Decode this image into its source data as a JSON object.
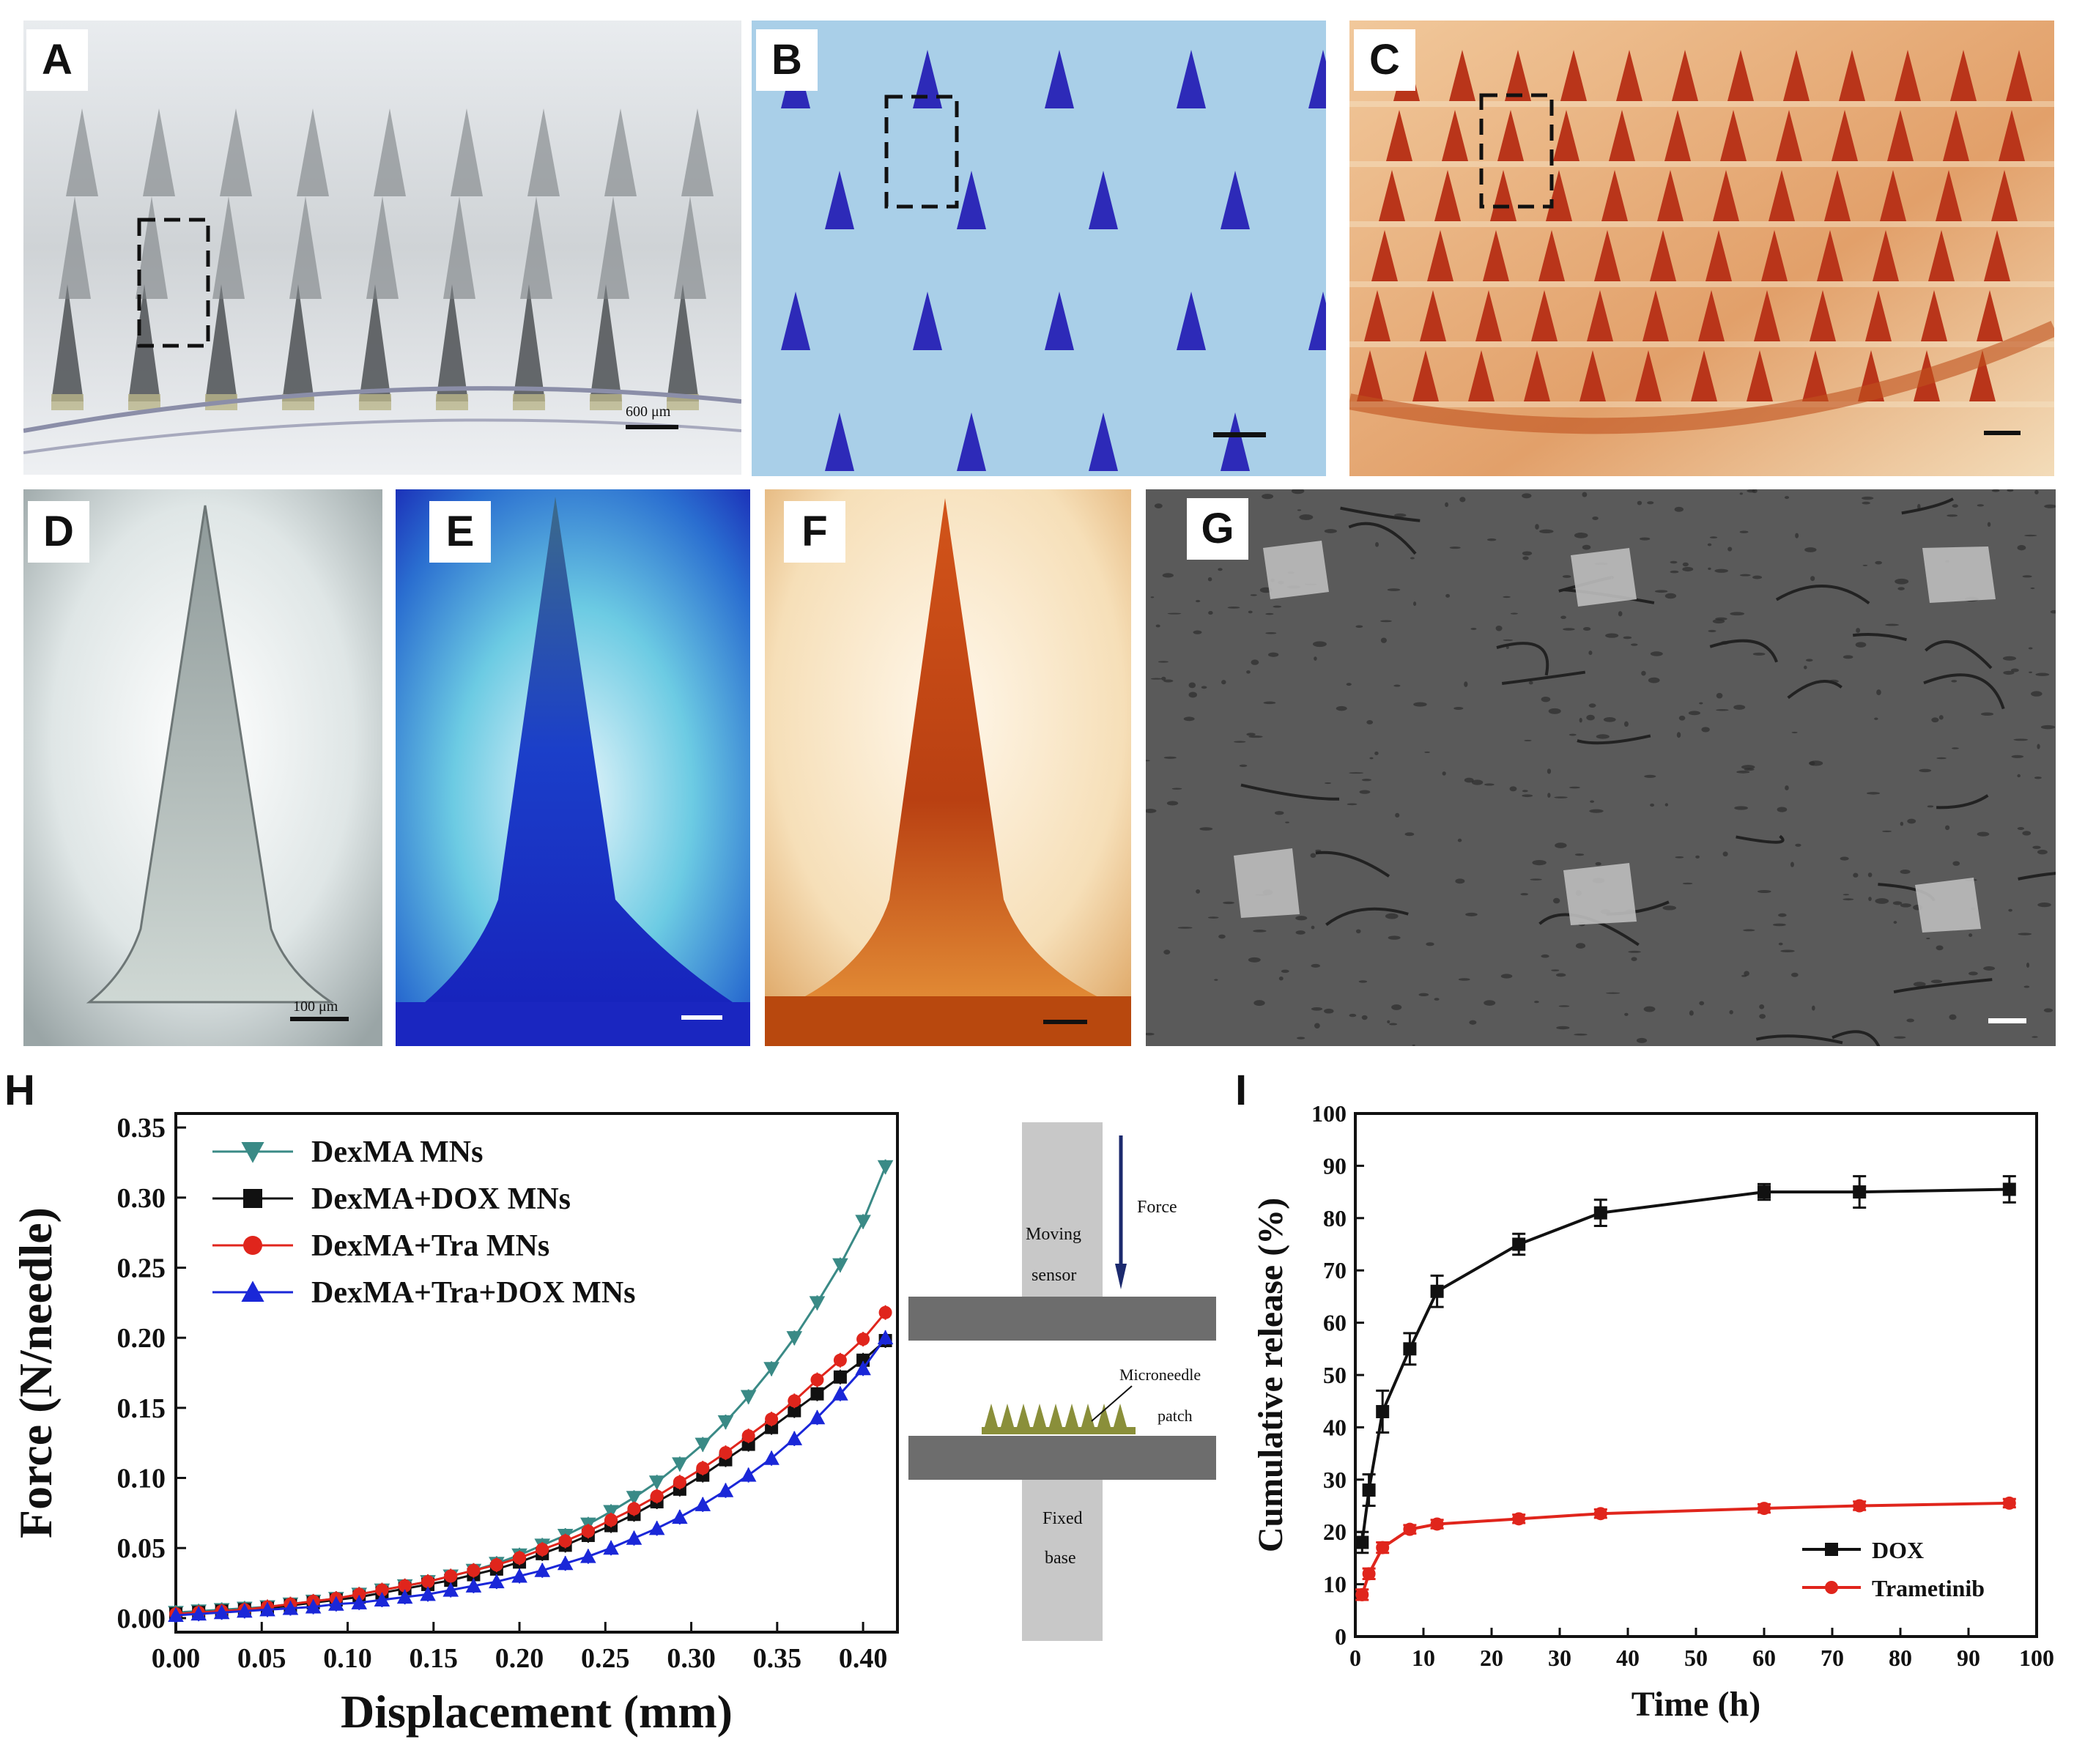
{
  "panels": {
    "A": {
      "letter": "A",
      "scale_label": "600 μm"
    },
    "B": {
      "letter": "B"
    },
    "C": {
      "letter": "C"
    },
    "D": {
      "letter": "D",
      "scale_label": "100 μm"
    },
    "E": {
      "letter": "E"
    },
    "F": {
      "letter": "F"
    },
    "G": {
      "letter": "G"
    },
    "H": {
      "letter": "H"
    },
    "I": {
      "letter": "I"
    }
  },
  "schematic": {
    "moving_sensor_1": "Moving",
    "moving_sensor_2": "sensor",
    "force": "Force",
    "microneedle_1": "Microneedle",
    "microneedle_2": "patch",
    "fixed_base_1": "Fixed",
    "fixed_base_2": "base"
  },
  "chart_data": [
    {
      "type": "line",
      "panel": "H",
      "xlabel": "Displacement (mm)",
      "ylabel": "Force (N/needle)",
      "xlim": [
        0.0,
        0.42
      ],
      "ylim": [
        -0.01,
        0.36
      ],
      "xticks": [
        "0.00",
        "0.05",
        "0.10",
        "0.15",
        "0.20",
        "0.25",
        "0.30",
        "0.35",
        "0.40"
      ],
      "yticks": [
        "0.00",
        "0.05",
        "0.10",
        "0.15",
        "0.20",
        "0.25",
        "0.30",
        "0.35"
      ],
      "legend_position": "top-left",
      "grid": false,
      "x": [
        0.0,
        0.0133,
        0.0267,
        0.04,
        0.0533,
        0.0667,
        0.08,
        0.0933,
        0.1067,
        0.12,
        0.1333,
        0.1467,
        0.16,
        0.1733,
        0.1867,
        0.2,
        0.2133,
        0.2267,
        0.24,
        0.2533,
        0.2667,
        0.28,
        0.2933,
        0.3067,
        0.32,
        0.3333,
        0.3467,
        0.36,
        0.3733,
        0.3867,
        0.4,
        0.413
      ],
      "series": [
        {
          "name": "DexMA MNs",
          "color": "#3a8a86",
          "marker": "triangle-down",
          "values": [
            0.004,
            0.005,
            0.006,
            0.007,
            0.008,
            0.01,
            0.012,
            0.014,
            0.017,
            0.02,
            0.023,
            0.026,
            0.03,
            0.034,
            0.039,
            0.045,
            0.052,
            0.059,
            0.067,
            0.076,
            0.086,
            0.097,
            0.11,
            0.124,
            0.14,
            0.158,
            0.178,
            0.2,
            0.225,
            0.252,
            0.283,
            0.322
          ]
        },
        {
          "name": "DexMA+DOX MNs",
          "color": "#111111",
          "marker": "square",
          "values": [
            0.003,
            0.004,
            0.005,
            0.006,
            0.007,
            0.009,
            0.011,
            0.013,
            0.015,
            0.018,
            0.021,
            0.024,
            0.027,
            0.031,
            0.035,
            0.04,
            0.046,
            0.052,
            0.059,
            0.066,
            0.074,
            0.083,
            0.092,
            0.102,
            0.113,
            0.124,
            0.136,
            0.148,
            0.16,
            0.172,
            0.184,
            0.198
          ]
        },
        {
          "name": "DexMA+Tra MNs",
          "color": "#e0251c",
          "marker": "circle",
          "values": [
            0.003,
            0.004,
            0.005,
            0.006,
            0.008,
            0.01,
            0.012,
            0.014,
            0.017,
            0.02,
            0.023,
            0.026,
            0.03,
            0.034,
            0.038,
            0.043,
            0.049,
            0.055,
            0.062,
            0.07,
            0.078,
            0.087,
            0.097,
            0.107,
            0.118,
            0.13,
            0.142,
            0.155,
            0.17,
            0.184,
            0.199,
            0.218
          ]
        },
        {
          "name": "DexMA+Tra+DOX MNs",
          "color": "#1a27d8",
          "marker": "triangle-up",
          "values": [
            0.002,
            0.003,
            0.004,
            0.005,
            0.006,
            0.007,
            0.008,
            0.01,
            0.011,
            0.013,
            0.015,
            0.017,
            0.02,
            0.023,
            0.026,
            0.03,
            0.034,
            0.039,
            0.044,
            0.05,
            0.057,
            0.064,
            0.072,
            0.081,
            0.091,
            0.102,
            0.114,
            0.128,
            0.143,
            0.16,
            0.178,
            0.2
          ]
        }
      ]
    },
    {
      "type": "line",
      "panel": "I",
      "xlabel": "Time (h)",
      "ylabel": "Cumulative release (%)",
      "xlim": [
        0,
        100
      ],
      "ylim": [
        0,
        100
      ],
      "xticks": [
        "0",
        "10",
        "20",
        "30",
        "40",
        "50",
        "60",
        "70",
        "80",
        "90",
        "100"
      ],
      "yticks": [
        "0",
        "10",
        "20",
        "30",
        "40",
        "50",
        "60",
        "70",
        "80",
        "90",
        "100"
      ],
      "legend_position": "bottom-right",
      "grid": false,
      "series": [
        {
          "name": "DOX",
          "color": "#111111",
          "marker": "square",
          "x": [
            1,
            2,
            4,
            8,
            12,
            24,
            36,
            60,
            74,
            96
          ],
          "values": [
            18,
            28,
            43,
            55,
            66,
            75,
            81,
            85,
            85,
            85.5
          ],
          "errors": [
            2,
            3,
            4,
            3,
            3,
            2,
            2.5,
            1.5,
            3,
            2.5
          ]
        },
        {
          "name": "Trametinib",
          "color": "#e0251c",
          "marker": "circle",
          "x": [
            1,
            2,
            4,
            8,
            12,
            24,
            36,
            60,
            74,
            96
          ],
          "values": [
            8,
            12,
            17,
            20.5,
            21.5,
            22.5,
            23.5,
            24.5,
            25,
            25.5
          ],
          "errors": [
            1,
            1,
            1,
            0.8,
            0.8,
            0.8,
            0.8,
            0.8,
            0.8,
            0.8
          ]
        }
      ]
    }
  ]
}
